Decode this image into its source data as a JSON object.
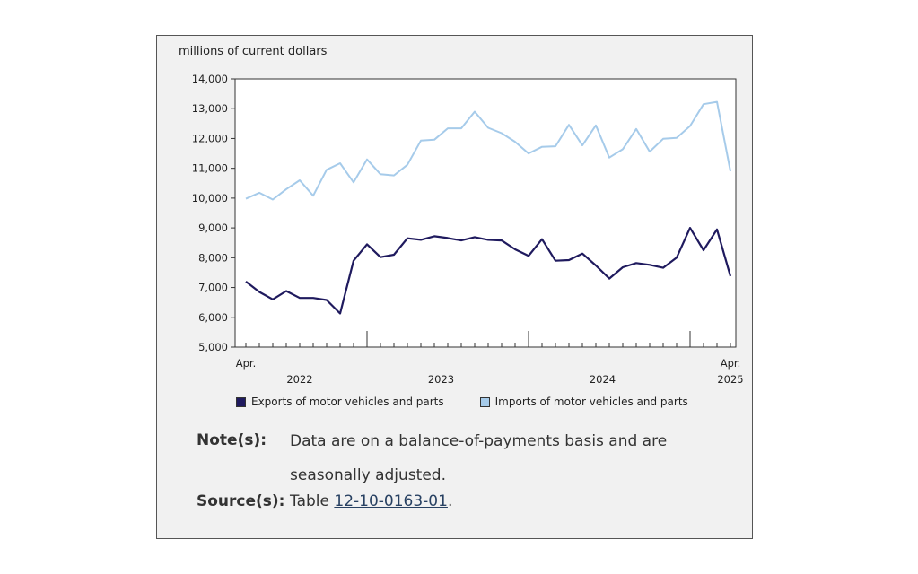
{
  "chart_data": {
    "type": "line",
    "ylabel": "millions of current dollars",
    "ylim": [
      5000,
      14000
    ],
    "yticks": [
      5000,
      6000,
      7000,
      8000,
      9000,
      10000,
      11000,
      12000,
      13000,
      14000
    ],
    "ytick_labels": [
      "5,000",
      "6,000",
      "7,000",
      "8,000",
      "9,000",
      "10,000",
      "11,000",
      "12,000",
      "13,000",
      "14,000"
    ],
    "x": [
      "2022-04",
      "2022-05",
      "2022-06",
      "2022-07",
      "2022-08",
      "2022-09",
      "2022-10",
      "2022-11",
      "2022-12",
      "2023-01",
      "2023-02",
      "2023-03",
      "2023-04",
      "2023-05",
      "2023-06",
      "2023-07",
      "2023-08",
      "2023-09",
      "2023-10",
      "2023-11",
      "2023-12",
      "2024-01",
      "2024-02",
      "2024-03",
      "2024-04",
      "2024-05",
      "2024-06",
      "2024-07",
      "2024-08",
      "2024-09",
      "2024-10",
      "2024-11",
      "2024-12",
      "2025-01",
      "2025-02",
      "2025-03",
      "2025-04"
    ],
    "x_labels": {
      "start_month": "Apr.",
      "end_month": "Apr.",
      "years": [
        "2022",
        "2023",
        "2024",
        "2025"
      ]
    },
    "grid": false,
    "legend_position": "bottom",
    "series": [
      {
        "name": "Exports of motor vehicles and parts",
        "color": "#1f1a5e",
        "values": [
          7200,
          6850,
          6600,
          6880,
          6650,
          6650,
          6580,
          6130,
          7900,
          8450,
          8020,
          8100,
          8650,
          8600,
          8720,
          8660,
          8580,
          8690,
          8600,
          8580,
          8280,
          8060,
          8620,
          7900,
          7920,
          8140,
          7740,
          7300,
          7680,
          7820,
          7760,
          7660,
          8000,
          9000,
          8250,
          8950,
          7380
        ]
      },
      {
        "name": "Imports of motor vehicles and parts",
        "color": "#a6cbea",
        "values": [
          9980,
          10180,
          9950,
          10300,
          10600,
          10080,
          10950,
          11170,
          10530,
          11300,
          10800,
          10760,
          11120,
          11930,
          11960,
          12340,
          12340,
          12900,
          12360,
          12180,
          11890,
          11500,
          11720,
          11740,
          12460,
          11770,
          12440,
          11360,
          11640,
          12320,
          11560,
          11990,
          12020,
          12420,
          13150,
          13230,
          10900
        ]
      }
    ]
  },
  "notes": {
    "note_label": "Note(s):",
    "note_text": "Data are on a balance-of-payments basis and are seasonally adjusted.",
    "source_label": "Source(s):",
    "source_prefix": "Table ",
    "source_link": "12-10-0163-01",
    "source_suffix": "."
  }
}
